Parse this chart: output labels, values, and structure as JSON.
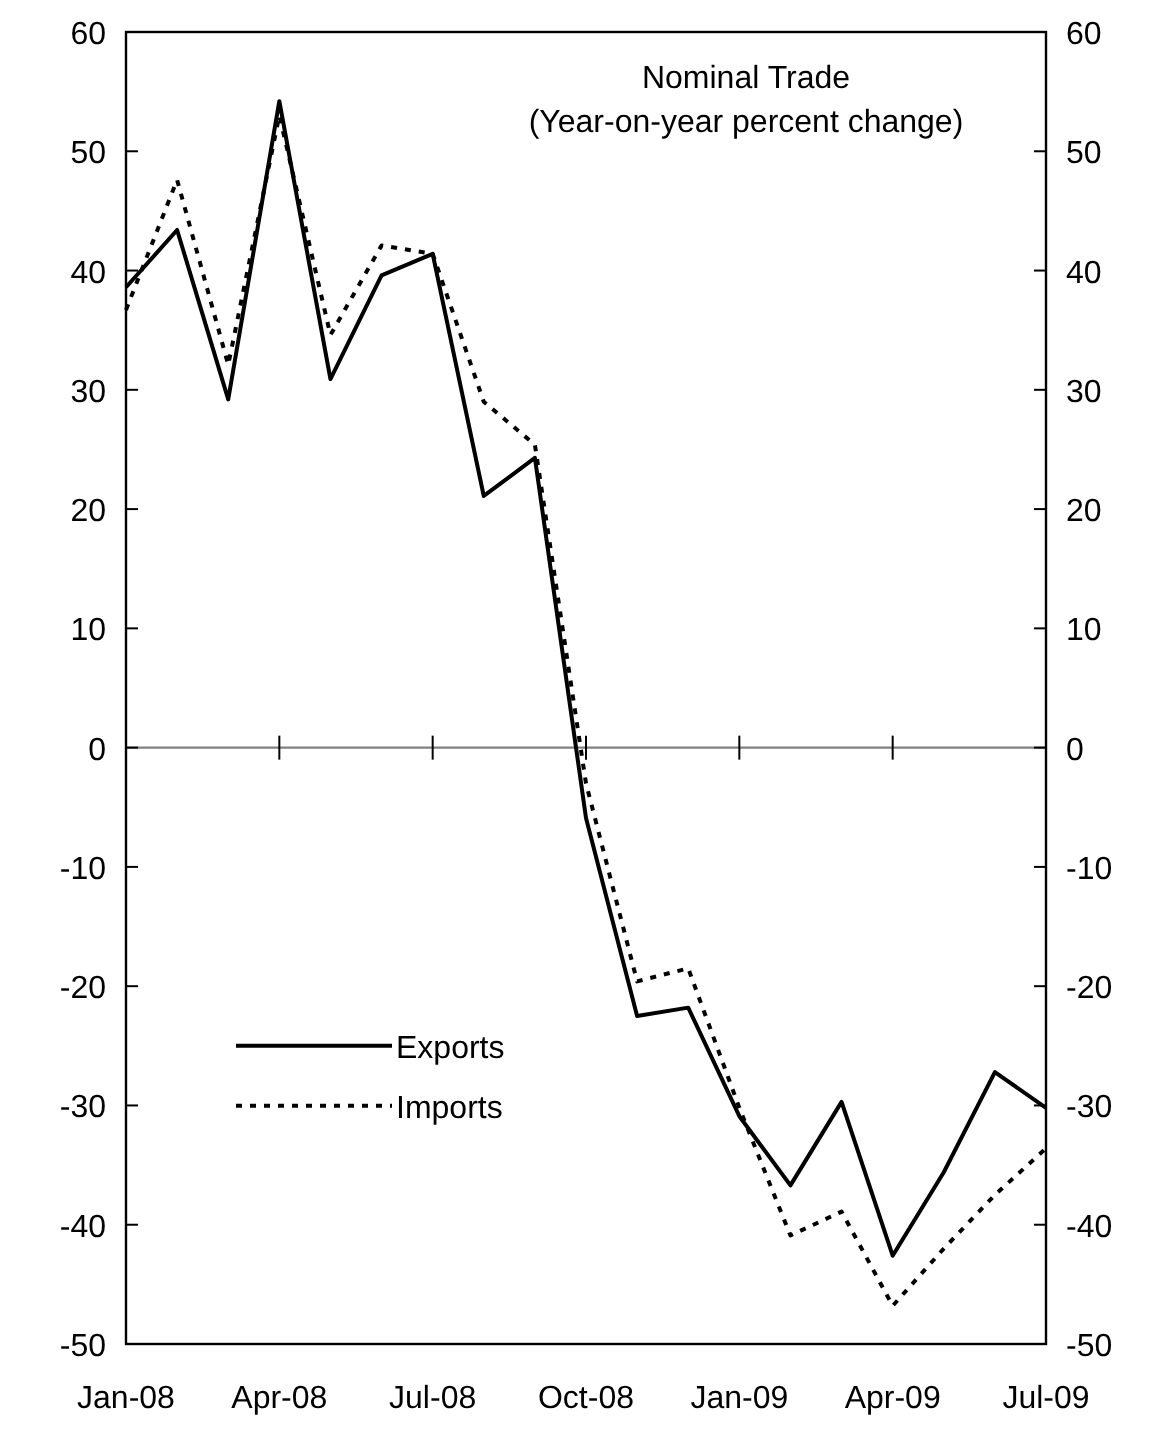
{
  "chart_data": {
    "type": "line",
    "title": "Nominal Trade",
    "subtitle": "(Year-on-year percent change)",
    "categories": [
      "Jan-08",
      null,
      null,
      "Apr-08",
      null,
      null,
      "Jul-08",
      null,
      null,
      "Oct-08",
      null,
      null,
      "Jan-09",
      null,
      null,
      "Apr-09",
      null,
      null,
      "Jul-09"
    ],
    "series": [
      {
        "name": "Exports",
        "color": "#000000",
        "line_style": "solid",
        "values": [
          38.6,
          43.4,
          29.2,
          54.2,
          30.9,
          39.6,
          41.4,
          21.1,
          24.3,
          -5.9,
          -22.5,
          -21.8,
          -30.9,
          -36.7,
          -29.7,
          -42.6,
          -35.6,
          -27.2,
          -30.2
        ]
      },
      {
        "name": "Imports",
        "color": "#000000",
        "line_style": "dotted",
        "values": [
          36.7,
          47.6,
          32.1,
          53,
          34.6,
          42.1,
          41.4,
          29,
          25.4,
          -3,
          -19.6,
          -18.5,
          -30.2,
          -40.9,
          -38.9,
          -46.8,
          -42,
          -37.5,
          -33.6
        ]
      }
    ],
    "ylim": [
      -50,
      60
    ],
    "yticks": [
      -50,
      -40,
      -30,
      -20,
      -10,
      0,
      10,
      20,
      30,
      40,
      50,
      60
    ],
    "y2lim": [
      -50,
      60
    ],
    "y2ticks": [
      -50,
      -40,
      -30,
      -20,
      -10,
      0,
      10,
      20,
      30,
      40,
      50,
      60
    ],
    "ref_lines": [
      {
        "axis": "y",
        "value": 0,
        "color": "#808080"
      }
    ],
    "legend": "bottom left",
    "grid": false
  }
}
